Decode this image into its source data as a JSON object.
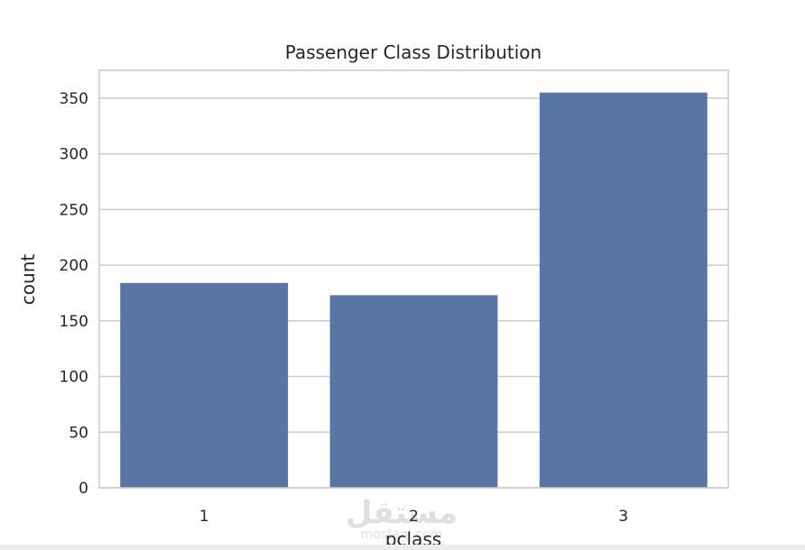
{
  "chart_data": {
    "type": "bar",
    "title": "Passenger Class Distribution",
    "xlabel": "pclass",
    "ylabel": "count",
    "categories": [
      "1",
      "2",
      "3"
    ],
    "values": [
      184,
      173,
      355
    ],
    "ylim": [
      0,
      375
    ],
    "yticks": [
      0,
      50,
      100,
      150,
      200,
      250,
      300,
      350
    ],
    "grid": "horizontal",
    "bar_color": "#5975a4",
    "grid_color": "#cccccc"
  },
  "watermark": {
    "arabic": "مستقل",
    "latin": "mostaql.com"
  }
}
